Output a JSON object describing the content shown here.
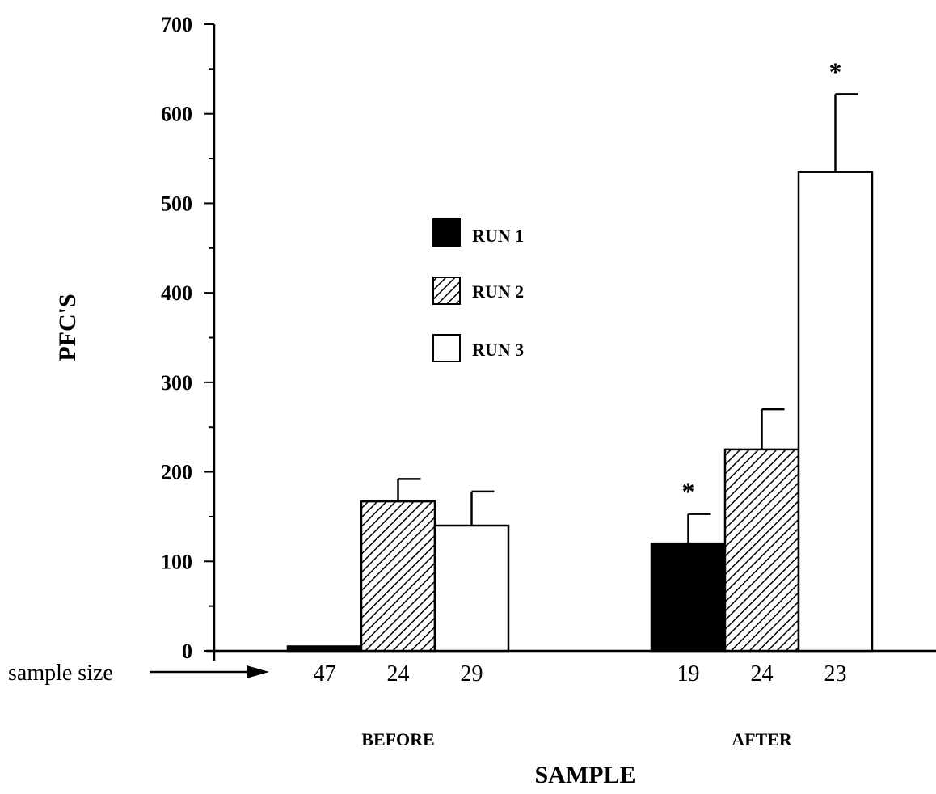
{
  "chart_data": {
    "type": "bar",
    "ylabel": "PFC'S",
    "xlabel": "SAMPLE",
    "ylim": [
      0,
      700
    ],
    "y_ticks": [
      0,
      100,
      200,
      300,
      400,
      500,
      600,
      700
    ],
    "categories": [
      "BEFORE",
      "AFTER"
    ],
    "legend_position": "center",
    "sample_size_label": "sample size",
    "series": [
      {
        "name": "RUN 1",
        "fill": "#000000",
        "pattern": "solid",
        "values": [
          5,
          120
        ],
        "error": [
          0,
          33
        ],
        "sample_size": [
          "47",
          "19"
        ],
        "significant": [
          "",
          "*"
        ]
      },
      {
        "name": "RUN 2",
        "fill": "#ffffff",
        "pattern": "hatched",
        "values": [
          167,
          225
        ],
        "error": [
          25,
          45
        ],
        "sample_size": [
          "24",
          "24"
        ],
        "significant": [
          "",
          ""
        ]
      },
      {
        "name": "RUN 3",
        "fill": "#ffffff",
        "pattern": "open",
        "values": [
          140,
          535
        ],
        "error": [
          38,
          87
        ],
        "sample_size": [
          "29",
          "23"
        ],
        "significant": [
          "",
          "*"
        ]
      }
    ]
  }
}
